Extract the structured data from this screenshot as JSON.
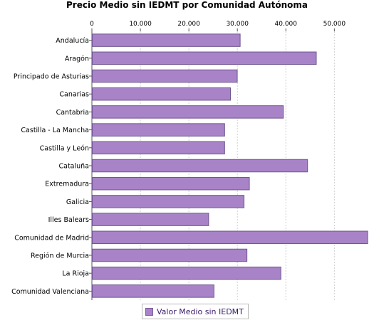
{
  "chart_data": {
    "type": "bar",
    "orientation": "horizontal",
    "title": "Precio Medio sin IEDMT por Comunidad Autónoma",
    "xlabel": "",
    "ylabel": "",
    "xlim": [
      0,
      57000
    ],
    "xticks": [
      0,
      10000,
      20000,
      30000,
      40000,
      50000
    ],
    "xtick_labels": [
      "0",
      "10.000",
      "20.000",
      "30.000",
      "40.000",
      "50.000"
    ],
    "grid": true,
    "legend_position": "bottom",
    "bar_color": "#a883c8",
    "bar_edge_color": "#6f5590",
    "categories": [
      "Andalucía",
      "Aragón",
      "Principado de Asturias",
      "Canarias",
      "Cantabria",
      "Castilla - La Mancha",
      "Castilla y León",
      "Cataluña",
      "Extremadura",
      "Galicia",
      "Illes Balears",
      "Comunidad de Madrid",
      "Región de Murcia",
      "La Rioja",
      "Comunidad Valenciana"
    ],
    "series": [
      {
        "name": "Valor Medio sin IEDMT",
        "values": [
          30500,
          46200,
          29900,
          28500,
          39400,
          27300,
          27300,
          44400,
          32400,
          31300,
          24000,
          56800,
          31900,
          38900,
          25100
        ]
      }
    ]
  }
}
